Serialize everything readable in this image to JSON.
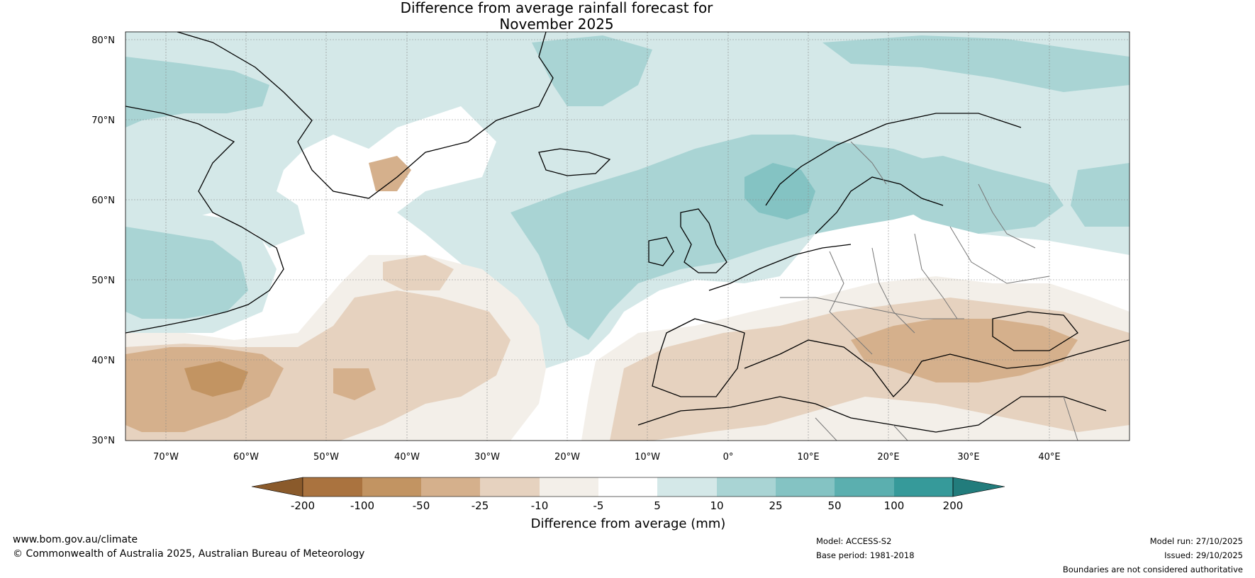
{
  "title": {
    "line1": "Difference from average rainfall forecast for",
    "line2": "November 2025"
  },
  "map": {
    "lat_labels": [
      "80°N",
      "70°N",
      "60°N",
      "50°N",
      "40°N",
      "30°N"
    ],
    "lon_labels": [
      "70°W",
      "60°W",
      "50°W",
      "40°W",
      "30°W",
      "20°W",
      "10°W",
      "0°",
      "10°E",
      "20°E",
      "30°E",
      "40°E"
    ],
    "lat_range": [
      30,
      80
    ],
    "lon_range": [
      -75,
      50
    ]
  },
  "legend": {
    "label": "Difference from average (mm)",
    "ticks": [
      "-200",
      "-100",
      "-50",
      "-25",
      "-10",
      "-5",
      "5",
      "10",
      "25",
      "50",
      "100",
      "200"
    ],
    "colors": [
      "#8a5a2b",
      "#aa733f",
      "#c29462",
      "#d5b08c",
      "#e6d2bf",
      "#f3efe9",
      "#ffffff",
      "#d4e8e8",
      "#a9d4d4",
      "#84c3c3",
      "#5bafaf",
      "#369a9a",
      "#227c7c"
    ]
  },
  "footer": {
    "website": "www.bom.gov.au/climate",
    "copyright": "© Commonwealth of Australia 2025, Australian Bureau of Meteorology",
    "model": "Model: ACCESS-S2",
    "base_period": "Base period: 1981-2018",
    "model_run": "Model run: 27/10/2025",
    "issued": "Issued: 29/10/2025",
    "disclaimer": "Boundaries are not considered authoritative"
  }
}
